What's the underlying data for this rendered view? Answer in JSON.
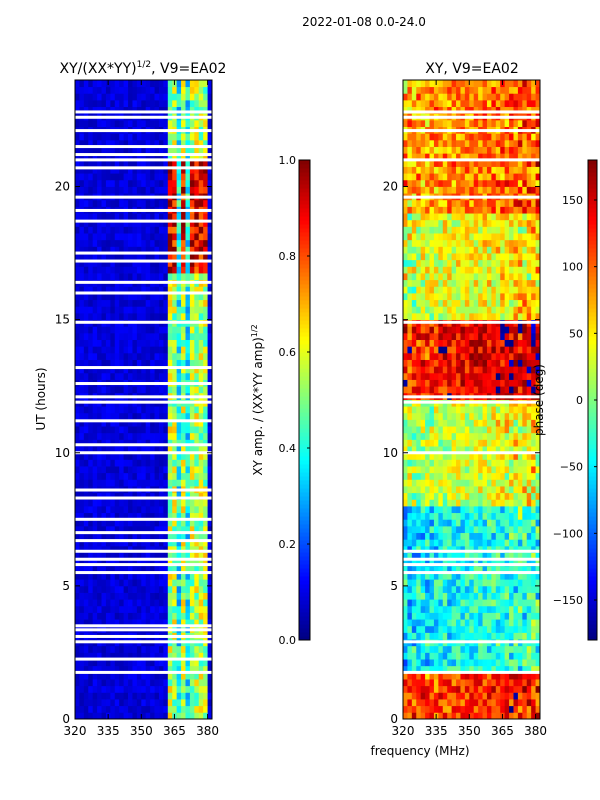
{
  "suptitle": "2022-01-08 0.0-24.0",
  "shared_xlabel": "frequency (MHz)",
  "colors": {
    "jet": [
      "#00007f",
      "#0000ff",
      "#007fff",
      "#00ffff",
      "#7fff7f",
      "#ffff00",
      "#ff7f00",
      "#ff0000",
      "#7f0000"
    ],
    "flag": "#ffffff",
    "frame": "#000000"
  },
  "chart_data": [
    {
      "type": "heatmap",
      "title_main": "XY/(XX*YY)",
      "title_sup": "1/2",
      "title_tail": ", V9=EA02",
      "xlabel": "",
      "ylabel": "UT (hours)",
      "xlim": [
        320,
        382
      ],
      "ylim": [
        0,
        24
      ],
      "xticks": [
        320,
        335,
        350,
        365,
        380
      ],
      "yticks": [
        0,
        5,
        10,
        15,
        20
      ],
      "colorbar": {
        "label_main": "XY amp. / (XX*YY amp)",
        "label_sup": "1/2",
        "range": [
          0.0,
          1.0
        ],
        "ticks": [
          "0.0",
          "0.2",
          "0.4",
          "0.6",
          "0.8",
          "1.0"
        ],
        "tick_values": [
          0.0,
          0.2,
          0.4,
          0.6,
          0.8,
          1.0
        ]
      },
      "bright_bands_mhz": [
        [
          363,
          366
        ],
        [
          368,
          370
        ],
        [
          373,
          375
        ],
        [
          377,
          380
        ]
      ],
      "bright_bands_value": 0.55,
      "background_value": 0.05,
      "high_amp_hours": [
        [
          16.8,
          21.0
        ]
      ],
      "flagged_hours": [
        1.75,
        2.25,
        2.9,
        3.1,
        3.35,
        3.5,
        5.5,
        5.8,
        6.0,
        6.3,
        6.7,
        7.0,
        7.5,
        8.3,
        8.6,
        10.0,
        10.3,
        11.2,
        11.9,
        12.1,
        12.6,
        13.2,
        14.9,
        16.0,
        16.4,
        17.2,
        17.5,
        18.7,
        19.1,
        19.6,
        20.7,
        21.0,
        21.2,
        21.5,
        22.1,
        22.6,
        22.8
      ]
    },
    {
      "type": "heatmap",
      "title_main": "XY, V9=EA02",
      "xlabel": "frequency (MHz)",
      "ylabel": "",
      "xlim": [
        320,
        382
      ],
      "ylim": [
        0,
        24
      ],
      "xticks": [
        320,
        335,
        350,
        365,
        380
      ],
      "yticks": [
        0,
        5,
        10,
        15,
        20
      ],
      "colorbar": {
        "label_main": "phase (deg)",
        "range": [
          -180,
          180
        ],
        "ticks": [
          "−150",
          "−100",
          "−50",
          "0",
          "50",
          "100",
          "150"
        ],
        "tick_values": [
          -150,
          -100,
          -50,
          0,
          50,
          100,
          150
        ]
      },
      "phase_regions": [
        {
          "hours": [
            0.0,
            1.8
          ],
          "phase_deg": 120
        },
        {
          "hours": [
            1.8,
            8.0
          ],
          "phase_deg": -40
        },
        {
          "hours": [
            8.0,
            12.0
          ],
          "phase_deg": 30
        },
        {
          "hours": [
            12.0,
            15.0
          ],
          "phase_deg": 140
        },
        {
          "hours": [
            15.0,
            19.0
          ],
          "phase_deg": 40
        },
        {
          "hours": [
            19.0,
            24.0
          ],
          "phase_deg": 90
        }
      ],
      "flagged_hours": [
        1.75,
        2.9,
        5.5,
        5.8,
        6.0,
        6.3,
        10.0,
        11.9,
        12.1,
        14.9,
        19.6,
        21.0,
        22.1,
        22.6,
        22.8
      ]
    }
  ]
}
